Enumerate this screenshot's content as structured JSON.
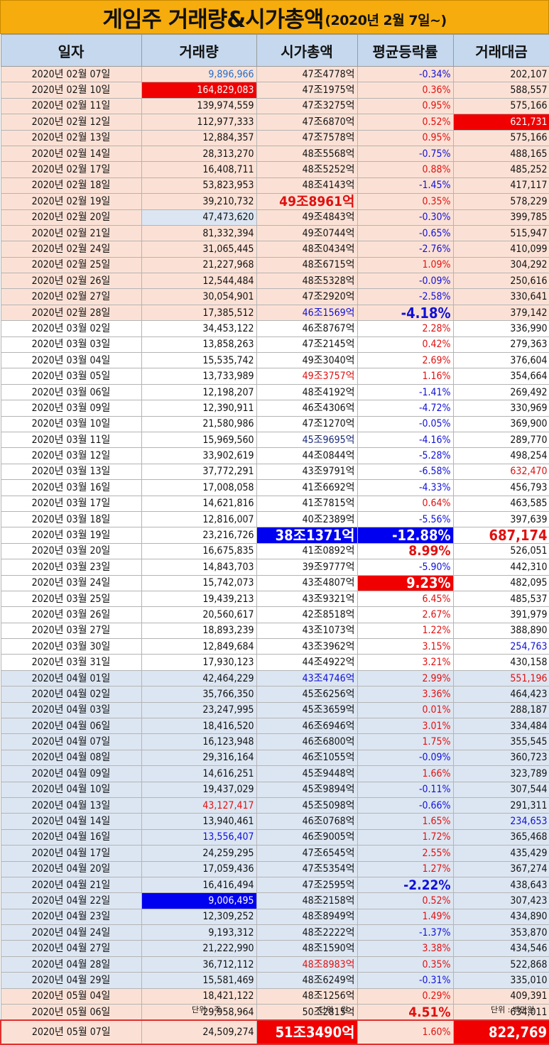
{
  "title": {
    "main": "게임주 거래량&시가총액",
    "sub": "(2020년 2월 7일~)"
  },
  "headers": [
    "일자",
    "거래량",
    "시가총액",
    "평균등락률",
    "거래대금"
  ],
  "rows": [
    [
      "2020년 02월 07일",
      "9,896,966",
      "47조4778억",
      "-0.34%",
      "202,107"
    ],
    [
      "2020년 02월 10일",
      "164,829,083",
      "47조1975억",
      "0.36%",
      "588,557"
    ],
    [
      "2020년 02월 11일",
      "139,974,559",
      "47조3275억",
      "0.95%",
      "575,166"
    ],
    [
      "2020년 02월 12일",
      "112,977,333",
      "47조6870억",
      "0.52%",
      "621,731"
    ],
    [
      "2020년 02월 13일",
      "12,884,357",
      "47조7578억",
      "0.95%",
      "575,166"
    ],
    [
      "2020년 02월 14일",
      "28,313,270",
      "48조5568억",
      "-0.75%",
      "488,165"
    ],
    [
      "2020년 02월 17일",
      "16,408,711",
      "48조5252억",
      "0.88%",
      "485,252"
    ],
    [
      "2020년 02월 18일",
      "53,823,953",
      "48조4143억",
      "-1.45%",
      "417,117"
    ],
    [
      "2020년 02월 19일",
      "39,210,732",
      "49조8961억",
      "0.35%",
      "578,229"
    ],
    [
      "2020년 02월 20일",
      "47,473,620",
      "49조4843억",
      "-0.30%",
      "399,785"
    ],
    [
      "2020년 02월 21일",
      "81,332,394",
      "49조0744억",
      "-0.65%",
      "515,947"
    ],
    [
      "2020년 02월 24일",
      "31,065,445",
      "48조0434억",
      "-2.76%",
      "410,099"
    ],
    [
      "2020년 02월 25일",
      "21,227,968",
      "48조6715억",
      "1.09%",
      "304,292"
    ],
    [
      "2020년 02월 26일",
      "12,544,484",
      "48조5328억",
      "-0.09%",
      "250,616"
    ],
    [
      "2020년 02월 27일",
      "30,054,901",
      "47조2920억",
      "-2.58%",
      "330,641"
    ],
    [
      "2020년 02월 28일",
      "17,385,512",
      "46조1569억",
      "-4.18%",
      "379,142"
    ],
    [
      "2020년 03월 02일",
      "34,453,122",
      "46조8767억",
      "2.28%",
      "336,990"
    ],
    [
      "2020년 03월 03일",
      "13,858,263",
      "47조2145억",
      "0.42%",
      "279,363"
    ],
    [
      "2020년 03월 04일",
      "15,535,742",
      "49조3040억",
      "2.69%",
      "376,604"
    ],
    [
      "2020년 03월 05일",
      "13,733,989",
      "49조3757억",
      "1.16%",
      "354,664"
    ],
    [
      "2020년 03월 06일",
      "12,198,207",
      "48조4192억",
      "-1.41%",
      "269,492"
    ],
    [
      "2020년 03월 09일",
      "12,390,911",
      "46조4306억",
      "-4.72%",
      "330,969"
    ],
    [
      "2020년 03월 10일",
      "21,580,986",
      "47조1270억",
      "-0.05%",
      "369,900"
    ],
    [
      "2020년 03월 11일",
      "15,969,560",
      "45조9695억",
      "-4.16%",
      "289,770"
    ],
    [
      "2020년 03월 12일",
      "33,902,619",
      "44조0844억",
      "-5.28%",
      "498,254"
    ],
    [
      "2020년 03월 13일",
      "37,772,291",
      "43조9791억",
      "-6.58%",
      "632,470"
    ],
    [
      "2020년 03월 16일",
      "17,008,058",
      "41조6692억",
      "-4.33%",
      "456,793"
    ],
    [
      "2020년 03월 17일",
      "14,621,816",
      "41조7815억",
      "0.64%",
      "463,585"
    ],
    [
      "2020년 03월 18일",
      "12,816,007",
      "40조2389억",
      "-5.56%",
      "397,639"
    ],
    [
      "2020년 03월 19일",
      "23,216,726",
      "38조1371억",
      "-12.88%",
      "687,174"
    ],
    [
      "2020년 03월 20일",
      "16,675,835",
      "41조0892억",
      "8.99%",
      "526,051"
    ],
    [
      "2020년 03월 23일",
      "14,843,703",
      "39조9777억",
      "-5.90%",
      "442,310"
    ],
    [
      "2020년 03월 24일",
      "15,742,073",
      "43조4807억",
      "9.23%",
      "482,095"
    ],
    [
      "2020년 03월 25일",
      "19,439,213",
      "43조9321억",
      "6.45%",
      "485,537"
    ],
    [
      "2020년 03월 26일",
      "20,560,617",
      "42조8518억",
      "2.67%",
      "391,979"
    ],
    [
      "2020년 03월 27일",
      "18,893,239",
      "43조1073억",
      "1.22%",
      "388,890"
    ],
    [
      "2020년 03월 30일",
      "12,849,684",
      "43조3962억",
      "3.15%",
      "254,763"
    ],
    [
      "2020년 03월 31일",
      "17,930,123",
      "44조4922억",
      "3.21%",
      "430,158"
    ],
    [
      "2020년 04월 01일",
      "42,464,229",
      "43조4746억",
      "2.99%",
      "551,196"
    ],
    [
      "2020년 04월 02일",
      "35,766,350",
      "45조6256억",
      "3.36%",
      "464,423"
    ],
    [
      "2020년 04월 03일",
      "23,247,995",
      "45조3659억",
      "0.01%",
      "288,187"
    ],
    [
      "2020년 04월 06일",
      "18,416,520",
      "46조6946억",
      "3.01%",
      "334,484"
    ],
    [
      "2020년 04월 07일",
      "16,123,948",
      "46조6800억",
      "1.75%",
      "355,545"
    ],
    [
      "2020년 04월 08일",
      "29,316,164",
      "46조1055억",
      "-0.09%",
      "360,723"
    ],
    [
      "2020년 04월 09일",
      "14,616,251",
      "45조9448억",
      "1.66%",
      "323,789"
    ],
    [
      "2020년 04월 10일",
      "19,437,029",
      "45조9894억",
      "-0.11%",
      "307,544"
    ],
    [
      "2020년 04월 13일",
      "43,127,417",
      "45조5098억",
      "-0.66%",
      "291,311"
    ],
    [
      "2020년 04월 14일",
      "13,940,461",
      "46조0768억",
      "1.65%",
      "234,653"
    ],
    [
      "2020년 04월 16일",
      "13,556,407",
      "46조9005억",
      "1.72%",
      "365,468"
    ],
    [
      "2020년 04월 17일",
      "24,259,295",
      "47조6545억",
      "2.55%",
      "435,429"
    ],
    [
      "2020년 04월 20일",
      "17,059,436",
      "47조5354억",
      "1.27%",
      "367,274"
    ],
    [
      "2020년 04월 21일",
      "16,416,494",
      "47조2595억",
      "-2.22%",
      "438,643"
    ],
    [
      "2020년 04월 22일",
      "9,006,495",
      "48조2158억",
      "0.52%",
      "307,423"
    ],
    [
      "2020년 04월 23일",
      "12,309,252",
      "48조8949억",
      "1.49%",
      "434,890"
    ],
    [
      "2020년 04월 24일",
      "9,193,312",
      "48조2222억",
      "-1.37%",
      "353,870"
    ],
    [
      "2020년 04월 27일",
      "21,222,990",
      "48조1590억",
      "3.38%",
      "434,546"
    ],
    [
      "2020년 04월 28일",
      "36,712,112",
      "48조8983억",
      "0.35%",
      "522,868"
    ],
    [
      "2020년 04월 29일",
      "15,581,469",
      "48조6249억",
      "-0.31%",
      "335,010"
    ],
    [
      "2020년 05월 04일",
      "18,421,122",
      "48조1256억",
      "0.29%",
      "409,391"
    ],
    [
      "2020년 05월 06일",
      "29,958,964",
      "50조2815억",
      "4.51%",
      "634,011"
    ],
    [
      "2020년 05월 07일",
      "24,509,274",
      "51조3490억",
      "1.60%",
      "822,769"
    ]
  ],
  "footer": {
    "unit_volume": "단위 : 주",
    "unit_cap": "단위 : 원",
    "unit_amount": "단위 : 백만원"
  },
  "colors": {
    "title_bg": "#f6ac0c",
    "header_bg": "#c5d8ee",
    "peach_row": "#fbe1d5",
    "blue_row": "#dce6f2",
    "highlight_red": "#f00000",
    "highlight_blue": "#0000f0"
  }
}
